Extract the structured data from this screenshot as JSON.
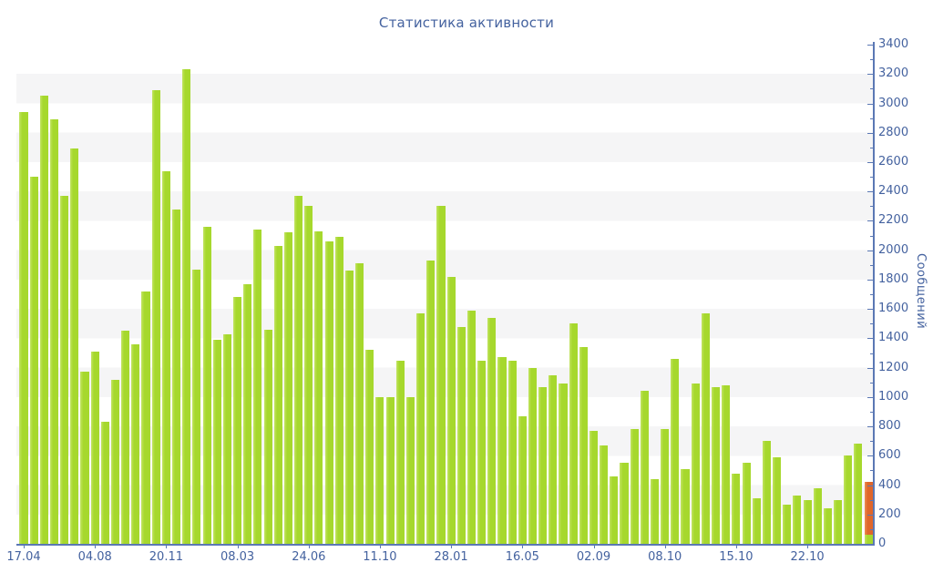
{
  "chart_data": {
    "type": "bar",
    "title": "Статистика активности",
    "ylabel": "Сообщений",
    "ylim": [
      0,
      3400
    ],
    "y_major_step": 200,
    "y_minor_step": 100,
    "grid": "alternating horizontal stripes every 200 units",
    "legend": "none",
    "x_tick_labels": [
      "17.04",
      "04.08",
      "20.11",
      "08.03",
      "24.06",
      "11.10",
      "28.01",
      "16.05",
      "02.09",
      "08.10",
      "15.10",
      "22.10"
    ],
    "x_tick_bar_index": [
      0,
      7,
      14,
      21,
      28,
      35,
      42,
      49,
      56,
      63,
      70,
      77
    ],
    "values": [
      2940,
      2500,
      3050,
      2890,
      2370,
      2690,
      1170,
      1310,
      830,
      1120,
      1450,
      1360,
      1720,
      3090,
      2540,
      2280,
      3230,
      1870,
      2160,
      1390,
      1430,
      1680,
      1770,
      2140,
      1460,
      2030,
      2120,
      2370,
      2300,
      2130,
      2060,
      2090,
      1860,
      1910,
      1320,
      1000,
      1000,
      1250,
      1000,
      1570,
      1930,
      2300,
      1820,
      1480,
      1590,
      1250,
      1540,
      1270,
      1250,
      870,
      1200,
      1070,
      1150,
      1090,
      1500,
      1340,
      770,
      670,
      460,
      550,
      780,
      1040,
      440,
      780,
      1260,
      510,
      1090,
      1570,
      1070,
      1080,
      480,
      550,
      310,
      700,
      590,
      270,
      330,
      300,
      380,
      240,
      300,
      600,
      680
    ],
    "last_bar": {
      "green_base": 60,
      "orange_top": 420
    }
  },
  "colors": {
    "bar_green": "#a6d82d",
    "bar_green_edge": "#c2e462",
    "bar_orange": "#e0662a",
    "bar_orange_edge": "#ec9055",
    "axis": "#5b78b4",
    "text": "#44629f",
    "stripe": "#f5f5f6",
    "background": "#ffffff"
  }
}
